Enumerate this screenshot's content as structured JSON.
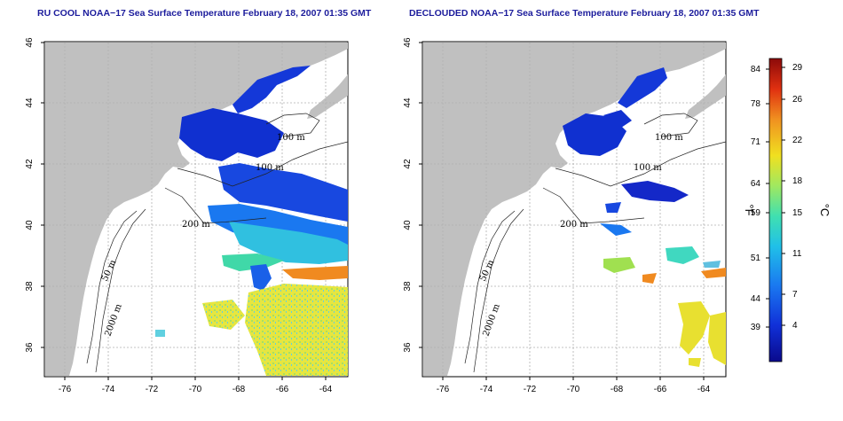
{
  "maps": [
    {
      "title": "RU COOL NOAA−17 Sea Surface Temperature February 18, 2007 01:35 GMT",
      "x_ticks": [
        "-76",
        "-74",
        "-72",
        "-70",
        "-68",
        "-66",
        "-64"
      ],
      "y_ticks": [
        "46",
        "44",
        "42",
        "40",
        "38",
        "36"
      ],
      "isobaths": [
        "100 m",
        "100 m",
        "200 m",
        "50 m",
        "2000 m"
      ]
    },
    {
      "title": "DECLOUDED NOAA−17 Sea Surface Temperature February 18, 2007 01:35 GMT",
      "x_ticks": [
        "-76",
        "-74",
        "-72",
        "-70",
        "-68",
        "-66",
        "-64"
      ],
      "y_ticks": [
        "46",
        "44",
        "42",
        "40",
        "38",
        "36"
      ],
      "isobaths": [
        "100 m",
        "100 m",
        "200 m",
        "50 m",
        "2000 m"
      ]
    }
  ],
  "colorbar": {
    "fahrenheit_ticks": [
      "84",
      "78",
      "71",
      "64",
      "59",
      "51",
      "44",
      "39"
    ],
    "celsius_ticks": [
      "29",
      "26",
      "22",
      "18",
      "15",
      "11",
      "7",
      "4"
    ],
    "left_unit": "°F",
    "right_unit": "°C",
    "colors": [
      "#0a0a8c",
      "#1030d8",
      "#1a78f0",
      "#20c0e8",
      "#40e0b0",
      "#a0e860",
      "#f0e020",
      "#f09020",
      "#e03010",
      "#8c0a0a"
    ]
  },
  "colors": {
    "land": "#c0c0c0",
    "title": "#1c1c9c",
    "grid": "#b0b0b0"
  }
}
